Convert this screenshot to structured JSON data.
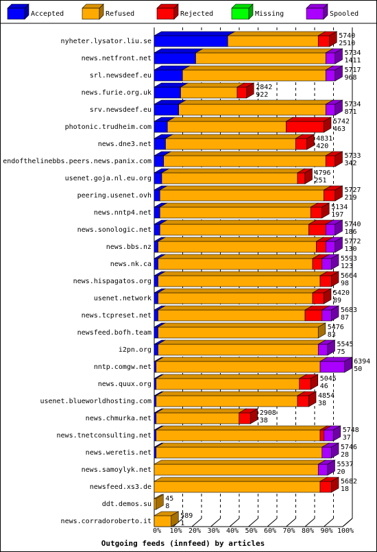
{
  "chart_data": {
    "type": "bar",
    "title": "Outgoing feeds (innfeed) by articles",
    "legend": {
      "placement": "top",
      "entries": [
        {
          "name": "Accepted",
          "color": "#0000ff"
        },
        {
          "name": "Refused",
          "color": "#ffaa00"
        },
        {
          "name": "Rejected",
          "color": "#ff0000"
        },
        {
          "name": "Missing",
          "color": "#00ff00"
        },
        {
          "name": "Spooled",
          "color": "#aa00ff"
        }
      ]
    },
    "x_ticks": [
      "0%",
      "10%",
      "20%",
      "30%",
      "40%",
      "50%",
      "60%",
      "70%",
      "80%",
      "90%",
      "100%"
    ],
    "xlim": [
      0,
      100
    ],
    "grid": true,
    "categories": [
      {
        "name": "nyheter.lysator.liu.se",
        "total": "5740",
        "accepted": "2510",
        "values": [
          39,
          48,
          6,
          0,
          0
        ]
      },
      {
        "name": "news.netfront.net",
        "total": "5734",
        "accepted": "1411",
        "values": [
          22,
          69,
          0,
          0,
          5
        ]
      },
      {
        "name": "srl.newsdeef.eu",
        "total": "5717",
        "accepted": "968",
        "values": [
          15,
          76,
          0,
          0,
          5
        ]
      },
      {
        "name": "news.furie.org.uk",
        "total": "2842",
        "accepted": "922",
        "values": [
          14,
          30,
          5,
          0,
          0
        ]
      },
      {
        "name": "srv.newsdeef.eu",
        "total": "5734",
        "accepted": "871",
        "values": [
          13,
          78,
          0,
          0,
          5
        ]
      },
      {
        "name": "photonic.trudheim.com",
        "total": "5742",
        "accepted": "463",
        "values": [
          7,
          63,
          20,
          0,
          0
        ]
      },
      {
        "name": "news.dne3.net",
        "total": "4831",
        "accepted": "420",
        "values": [
          6,
          69,
          6,
          0,
          0
        ]
      },
      {
        "name": "endofthelinebbs.peers.news.panix.com",
        "total": "5733",
        "accepted": "342",
        "values": [
          5,
          86,
          5,
          0,
          0
        ]
      },
      {
        "name": "usenet.goja.nl.eu.org",
        "total": "4796",
        "accepted": "251",
        "values": [
          4,
          72,
          4,
          0,
          0
        ]
      },
      {
        "name": "peering.usenet.ovh",
        "total": "5727",
        "accepted": "219",
        "values": [
          3,
          87,
          6,
          0,
          0
        ]
      },
      {
        "name": "news.nntp4.net",
        "total": "5134",
        "accepted": "197",
        "values": [
          3,
          80,
          6,
          0,
          0
        ]
      },
      {
        "name": "news.sonologic.net",
        "total": "5740",
        "accepted": "186",
        "values": [
          3,
          79,
          9,
          0,
          5
        ]
      },
      {
        "name": "news.bbs.nz",
        "total": "5772",
        "accepted": "130",
        "values": [
          2,
          84,
          5,
          0,
          5
        ]
      },
      {
        "name": "news.nk.ca",
        "total": "5593",
        "accepted": "123",
        "values": [
          2,
          82,
          5,
          0,
          5
        ]
      },
      {
        "name": "news.hispagatos.org",
        "total": "5664",
        "accepted": "98",
        "values": [
          2,
          86,
          6,
          0,
          0
        ]
      },
      {
        "name": "usenet.network",
        "total": "5420",
        "accepted": "89",
        "values": [
          2,
          82,
          6,
          0,
          0
        ]
      },
      {
        "name": "news.tcpreset.net",
        "total": "5683",
        "accepted": "87",
        "values": [
          2,
          78,
          9,
          0,
          5
        ]
      },
      {
        "name": "newsfeed.bofh.team",
        "total": "5476",
        "accepted": "83",
        "values": [
          2,
          85,
          0,
          0,
          0
        ]
      },
      {
        "name": "i2pn.org",
        "total": "5545",
        "accepted": "75",
        "values": [
          2,
          85,
          0,
          0,
          5
        ]
      },
      {
        "name": "nntp.comgw.net",
        "total": "6394",
        "accepted": "50",
        "values": [
          1,
          87,
          0,
          0,
          13
        ]
      },
      {
        "name": "news.quux.org",
        "total": "5045",
        "accepted": "46",
        "values": [
          1,
          76,
          6,
          0,
          0
        ]
      },
      {
        "name": "usenet.blueworldhosting.com",
        "total": "4854",
        "accepted": "38",
        "values": [
          1,
          75,
          6,
          0,
          0
        ]
      },
      {
        "name": "news.chmurka.net",
        "total": "2908",
        "accepted": "38",
        "values": [
          1,
          44,
          6,
          0,
          0
        ]
      },
      {
        "name": "news.tnetconsulting.net",
        "total": "5748",
        "accepted": "37",
        "values": [
          1,
          87,
          2,
          0,
          5
        ]
      },
      {
        "name": "news.weretis.net",
        "total": "5746",
        "accepted": "28",
        "values": [
          1,
          88,
          0,
          0,
          5
        ]
      },
      {
        "name": "news.samoylyk.net",
        "total": "5537",
        "accepted": "20",
        "values": [
          0,
          87,
          0,
          0,
          5
        ]
      },
      {
        "name": "newsfeed.xs3.de",
        "total": "5682",
        "accepted": "18",
        "values": [
          0,
          88,
          6,
          0,
          0
        ]
      },
      {
        "name": "ddt.demos.su",
        "total": "45",
        "accepted": "8",
        "values": [
          0,
          1,
          0,
          0,
          0
        ]
      },
      {
        "name": "news.corradoroberto.it",
        "total": "589",
        "accepted": "1",
        "values": [
          0,
          9,
          0,
          0,
          0
        ]
      }
    ]
  }
}
